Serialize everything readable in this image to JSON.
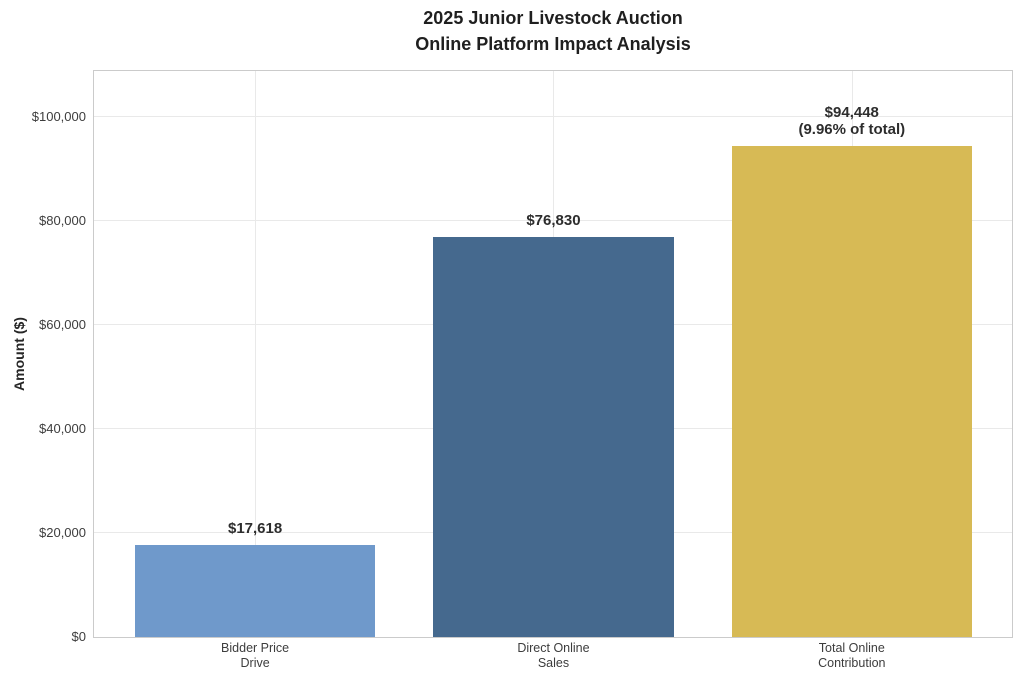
{
  "chart_data": {
    "type": "bar",
    "title_lines": [
      "2025 Junior Livestock Auction",
      "Online Platform Impact Analysis"
    ],
    "ylabel": "Amount ($)",
    "xlabel": "",
    "categories": [
      "Bidder Price Drive",
      "Direct Online Sales",
      "Total Online Contribution"
    ],
    "values": [
      17618,
      76830,
      94448
    ],
    "ylim": [
      0,
      108800
    ],
    "grid": "both",
    "legend": null,
    "yticks": [
      {
        "value": 0,
        "label": "$0"
      },
      {
        "value": 20000,
        "label": "$20,000"
      },
      {
        "value": 40000,
        "label": "$40,000"
      },
      {
        "value": 60000,
        "label": "$60,000"
      },
      {
        "value": 80000,
        "label": "$80,000"
      },
      {
        "value": 100000,
        "label": "$100,000"
      }
    ],
    "bars": [
      {
        "name": "bar-bidder-price-drive",
        "category_lines": [
          "Bidder Price",
          "Drive"
        ],
        "value": 17618,
        "label_lines": [
          "$17,618"
        ],
        "color": "#6f99cb"
      },
      {
        "name": "bar-direct-online-sales",
        "category_lines": [
          "Direct Online",
          "Sales"
        ],
        "value": 76830,
        "label_lines": [
          "$76,830"
        ],
        "color": "#45698e"
      },
      {
        "name": "bar-total-online-contribution",
        "category_lines": [
          "Total Online",
          "Contribution"
        ],
        "value": 94448,
        "label_lines": [
          "$94,448",
          "(9.96% of total)"
        ],
        "color": "#d7ba55"
      }
    ]
  },
  "colors": {
    "plot_border": "#cbcbcb",
    "gridline": "#e9e9e9",
    "title_text": "#1f1f1f",
    "tick_text": "#3d3d3d",
    "value_label_text": "#2d2d2d",
    "background": "#ffffff"
  }
}
